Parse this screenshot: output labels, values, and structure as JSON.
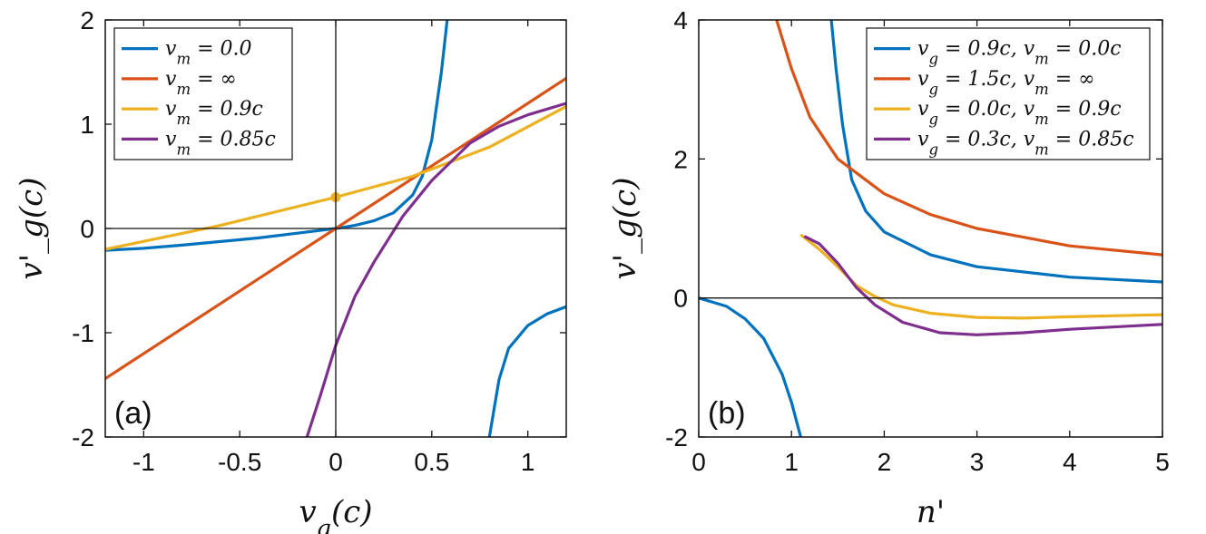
{
  "chart_data": [
    {
      "type": "line",
      "panel_label": "(a)",
      "xlabel": "v_g(c)",
      "ylabel": "v'_g(c)",
      "xlim": [
        -1.2,
        1.2
      ],
      "ylim": [
        -2,
        2
      ],
      "xticks": [
        -1,
        -0.5,
        0,
        0.5,
        1
      ],
      "xtick_labels": [
        "-1",
        "-0.5",
        "0",
        "0.5",
        "1"
      ],
      "yticks": [
        -2,
        -1,
        0,
        1,
        2
      ],
      "ytick_labels": [
        "-2",
        "-1",
        "0",
        "1",
        "2"
      ],
      "zero_lines": true,
      "legend_position": "top-left",
      "series": [
        {
          "name": "v_m = 0.0",
          "legend_label": "v_m = 0.0",
          "color": "#0072BD",
          "segments": [
            [
              [
                -1.2,
                -0.21
              ],
              [
                -1.0,
                -0.19
              ],
              [
                -0.8,
                -0.16
              ],
              [
                -0.6,
                -0.125
              ],
              [
                -0.4,
                -0.09
              ],
              [
                -0.2,
                -0.045
              ],
              [
                0.0,
                0.0
              ],
              [
                0.1,
                0.03
              ],
              [
                0.2,
                0.075
              ],
              [
                0.3,
                0.15
              ],
              [
                0.4,
                0.32
              ],
              [
                0.45,
                0.5
              ],
              [
                0.5,
                0.85
              ],
              [
                0.55,
                1.5
              ],
              [
                0.58,
                2.0
              ]
            ],
            [
              [
                0.8,
                -2.0
              ],
              [
                0.85,
                -1.45
              ],
              [
                0.9,
                -1.15
              ],
              [
                1.0,
                -0.93
              ],
              [
                1.1,
                -0.82
              ],
              [
                1.2,
                -0.75
              ]
            ]
          ]
        },
        {
          "name": "v_m = ∞",
          "legend_label": "v_m = ∞",
          "color": "#D95319",
          "segments": [
            [
              [
                -1.2,
                -1.44
              ],
              [
                1.2,
                1.44
              ]
            ]
          ]
        },
        {
          "name": "v_m = 0.9c",
          "legend_label": "v_m = 0.9c",
          "color": "#EDB120",
          "segments": [
            [
              [
                -1.2,
                -0.2
              ],
              [
                -0.6,
                0.03
              ],
              [
                0.0,
                0.3
              ],
              [
                0.4,
                0.5
              ],
              [
                0.8,
                0.78
              ],
              [
                1.2,
                1.17
              ]
            ]
          ],
          "marker_point": [
            0.0,
            0.3
          ]
        },
        {
          "name": "v_m = 0.85c",
          "legend_label": "v_m = 0.85c",
          "color": "#7E2F8E",
          "segments": [
            [
              [
                -0.15,
                -2.0
              ],
              [
                -0.08,
                -1.6
              ],
              [
                0.0,
                -1.12
              ],
              [
                0.1,
                -0.65
              ],
              [
                0.2,
                -0.32
              ],
              [
                0.35,
                0.12
              ],
              [
                0.5,
                0.46
              ],
              [
                0.7,
                0.82
              ],
              [
                0.85,
                0.98
              ],
              [
                1.0,
                1.09
              ],
              [
                1.2,
                1.2
              ]
            ]
          ]
        }
      ]
    },
    {
      "type": "line",
      "panel_label": "(b)",
      "xlabel": "n'",
      "ylabel": "v'_g(c)",
      "xlim": [
        0,
        5
      ],
      "ylim": [
        -2,
        4
      ],
      "xticks": [
        0,
        1,
        2,
        3,
        4,
        5
      ],
      "xtick_labels": [
        "0",
        "1",
        "2",
        "3",
        "4",
        "5"
      ],
      "yticks": [
        -2,
        0,
        2,
        4
      ],
      "ytick_labels": [
        "-2",
        "0",
        "2",
        "4"
      ],
      "zero_lines": true,
      "legend_position": "top-right",
      "series": [
        {
          "name": "v_g = 0.9c, v_m = 0.0c",
          "legend_label": "v_g = 0.9c, v_m = 0.0c",
          "color": "#0072BD",
          "segments": [
            [
              [
                0.0,
                0.0
              ],
              [
                0.3,
                -0.12
              ],
              [
                0.5,
                -0.3
              ],
              [
                0.7,
                -0.58
              ],
              [
                0.9,
                -1.1
              ],
              [
                1.0,
                -1.5
              ],
              [
                1.1,
                -2.0
              ]
            ],
            [
              [
                1.43,
                4.0
              ],
              [
                1.48,
                3.3
              ],
              [
                1.55,
                2.5
              ],
              [
                1.65,
                1.7
              ],
              [
                1.8,
                1.25
              ],
              [
                2.0,
                0.95
              ],
              [
                2.5,
                0.62
              ],
              [
                3.0,
                0.45
              ],
              [
                4.0,
                0.3
              ],
              [
                5.0,
                0.23
              ]
            ]
          ]
        },
        {
          "name": "v_g = 1.5c, v_m = ∞",
          "legend_label": "v_g = 1.5c, v_m = ∞",
          "color": "#D95319",
          "segments": [
            [
              [
                0.84,
                4.0
              ],
              [
                1.0,
                3.3
              ],
              [
                1.2,
                2.6
              ],
              [
                1.5,
                2.0
              ],
              [
                2.0,
                1.5
              ],
              [
                2.5,
                1.2
              ],
              [
                3.0,
                1.0
              ],
              [
                4.0,
                0.75
              ],
              [
                5.0,
                0.62
              ]
            ]
          ]
        },
        {
          "name": "v_g = 0.0c, v_m = 0.9c",
          "legend_label": "v_g = 0.0c, v_m = 0.9c",
          "color": "#EDB120",
          "segments": [
            [
              [
                1.11,
                0.9
              ],
              [
                1.3,
                0.7
              ],
              [
                1.5,
                0.45
              ],
              [
                1.7,
                0.18
              ],
              [
                1.9,
                0.02
              ],
              [
                2.1,
                -0.1
              ],
              [
                2.5,
                -0.22
              ],
              [
                3.0,
                -0.28
              ],
              [
                3.5,
                -0.29
              ],
              [
                4.0,
                -0.27
              ],
              [
                5.0,
                -0.24
              ]
            ]
          ]
        },
        {
          "name": "v_g = 0.3c, v_m = 0.85c",
          "legend_label": "v_g = 0.3c, v_m = 0.85c",
          "color": "#7E2F8E",
          "segments": [
            [
              [
                1.15,
                0.88
              ],
              [
                1.3,
                0.78
              ],
              [
                1.5,
                0.5
              ],
              [
                1.7,
                0.15
              ],
              [
                1.9,
                -0.1
              ],
              [
                2.2,
                -0.35
              ],
              [
                2.6,
                -0.5
              ],
              [
                3.0,
                -0.53
              ],
              [
                3.5,
                -0.5
              ],
              [
                4.0,
                -0.45
              ],
              [
                5.0,
                -0.38
              ]
            ]
          ]
        }
      ]
    }
  ]
}
